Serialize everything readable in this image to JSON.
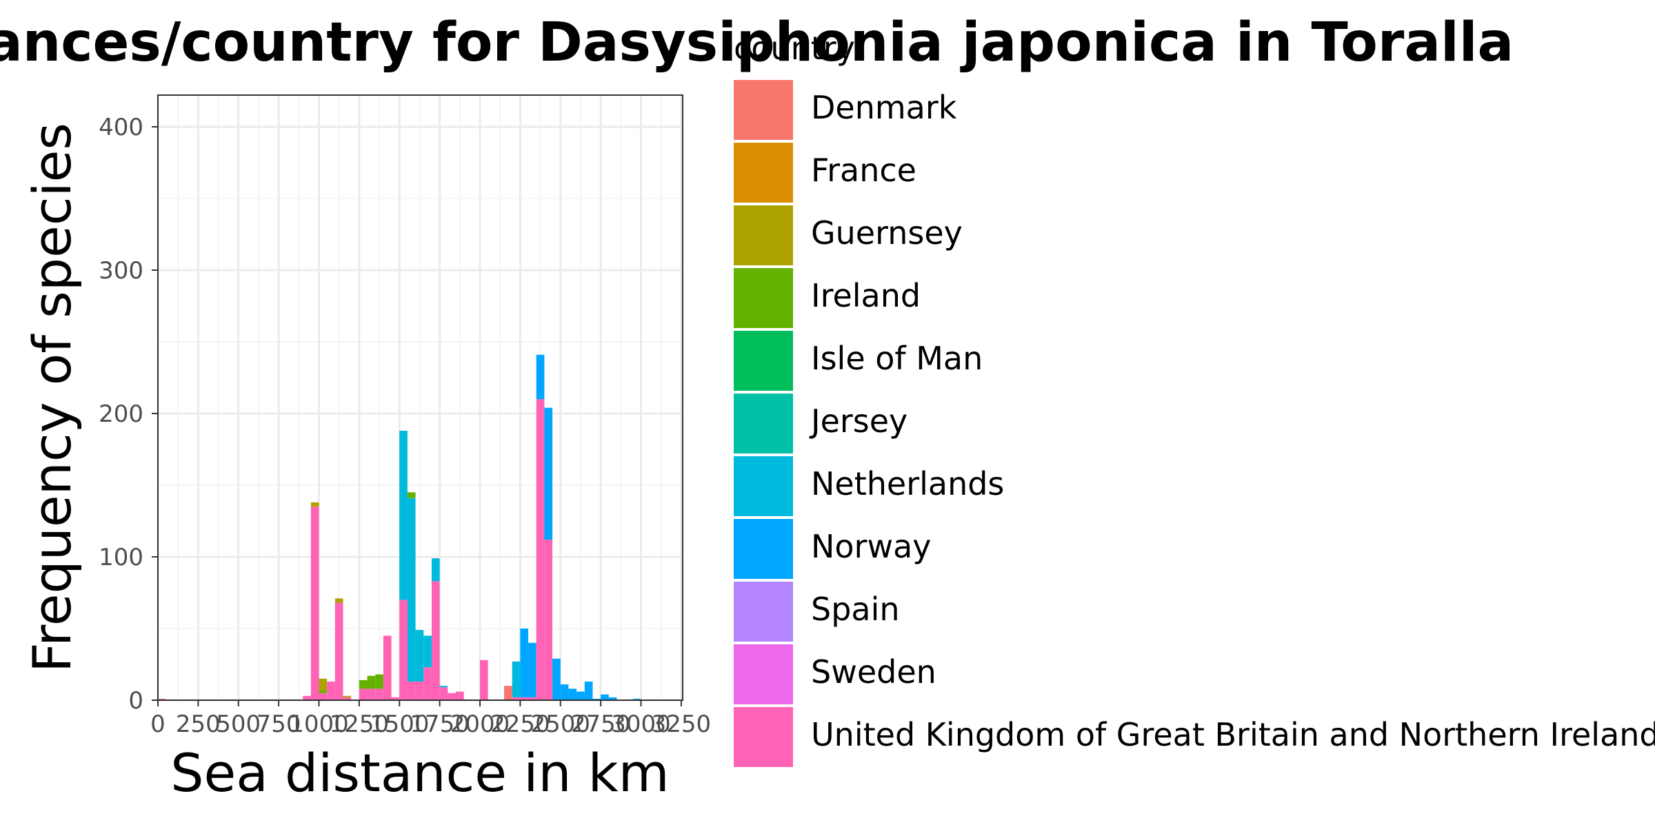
{
  "chart_data": {
    "type": "bar",
    "stacked": true,
    "title": "Distances/country for Dasysiphonia japonica in Toralla",
    "xlabel": "Sea distance in km",
    "ylabel": "Frequency of species",
    "xlim": [
      0,
      3250
    ],
    "ylim": [
      0,
      420
    ],
    "x_ticks": [
      "0",
      "250",
      "500",
      "750",
      "1000",
      "1250",
      "1500",
      "1750",
      "2000",
      "2250",
      "2500",
      "2750",
      "3000",
      "3250"
    ],
    "y_ticks": [
      "0",
      "100",
      "200",
      "300",
      "400"
    ],
    "x_tick_values": [
      0,
      250,
      500,
      750,
      1000,
      1250,
      1500,
      1750,
      2000,
      2250,
      2500,
      2750,
      3000,
      3250
    ],
    "y_tick_values": [
      0,
      100,
      200,
      300,
      400
    ],
    "grid": true,
    "legend": {
      "title": "country",
      "position": "right",
      "entries": [
        {
          "name": "Denmark",
          "color": "#F8766D"
        },
        {
          "name": "France",
          "color": "#DB8E00"
        },
        {
          "name": "Guernsey",
          "color": "#AEA200"
        },
        {
          "name": "Ireland",
          "color": "#64B200"
        },
        {
          "name": "Isle of Man",
          "color": "#00BD5C"
        },
        {
          "name": "Jersey",
          "color": "#00C1A7"
        },
        {
          "name": "Netherlands",
          "color": "#00BADE"
        },
        {
          "name": "Norway",
          "color": "#00A6FF"
        },
        {
          "name": "Spain",
          "color": "#B385FF"
        },
        {
          "name": "Sweden",
          "color": "#EF67EB"
        },
        {
          "name": "United Kingdom of Great Britain and Northern Ireland",
          "color": "#FF63B6"
        }
      ]
    },
    "bin_width": 50,
    "bins": [
      {
        "x0": 0,
        "segments": [
          {
            "country": "United Kingdom of Great Britain and Northern Ireland",
            "value": 1
          }
        ]
      },
      {
        "x0": 900,
        "segments": [
          {
            "country": "United Kingdom of Great Britain and Northern Ireland",
            "value": 3
          }
        ]
      },
      {
        "x0": 950,
        "segments": [
          {
            "country": "United Kingdom of Great Britain and Northern Ireland",
            "value": 135
          },
          {
            "country": "Guernsey",
            "value": 3
          }
        ]
      },
      {
        "x0": 1000,
        "segments": [
          {
            "country": "United Kingdom of Great Britain and Northern Ireland",
            "value": 5
          },
          {
            "country": "Ireland",
            "value": 2
          },
          {
            "country": "Guernsey",
            "value": 8
          }
        ]
      },
      {
        "x0": 1050,
        "segments": [
          {
            "country": "United Kingdom of Great Britain and Northern Ireland",
            "value": 13
          }
        ]
      },
      {
        "x0": 1100,
        "segments": [
          {
            "country": "United Kingdom of Great Britain and Northern Ireland",
            "value": 68
          },
          {
            "country": "Guernsey",
            "value": 3
          }
        ]
      },
      {
        "x0": 1150,
        "segments": [
          {
            "country": "United Kingdom of Great Britain and Northern Ireland",
            "value": 2
          },
          {
            "country": "Guernsey",
            "value": 1
          }
        ]
      },
      {
        "x0": 1250,
        "segments": [
          {
            "country": "United Kingdom of Great Britain and Northern Ireland",
            "value": 8
          },
          {
            "country": "Ireland",
            "value": 6
          }
        ]
      },
      {
        "x0": 1300,
        "segments": [
          {
            "country": "United Kingdom of Great Britain and Northern Ireland",
            "value": 8
          },
          {
            "country": "Ireland",
            "value": 9
          }
        ]
      },
      {
        "x0": 1350,
        "segments": [
          {
            "country": "United Kingdom of Great Britain and Northern Ireland",
            "value": 8
          },
          {
            "country": "Ireland",
            "value": 10
          }
        ]
      },
      {
        "x0": 1400,
        "segments": [
          {
            "country": "United Kingdom of Great Britain and Northern Ireland",
            "value": 45
          }
        ]
      },
      {
        "x0": 1450,
        "segments": [
          {
            "country": "United Kingdom of Great Britain and Northern Ireland",
            "value": 2
          }
        ]
      },
      {
        "x0": 1500,
        "segments": [
          {
            "country": "United Kingdom of Great Britain and Northern Ireland",
            "value": 70
          },
          {
            "country": "Netherlands",
            "value": 118
          }
        ]
      },
      {
        "x0": 1550,
        "segments": [
          {
            "country": "United Kingdom of Great Britain and Northern Ireland",
            "value": 13
          },
          {
            "country": "Netherlands",
            "value": 128
          },
          {
            "country": "Ireland",
            "value": 4
          }
        ]
      },
      {
        "x0": 1600,
        "segments": [
          {
            "country": "United Kingdom of Great Britain and Northern Ireland",
            "value": 13
          },
          {
            "country": "Netherlands",
            "value": 36
          }
        ]
      },
      {
        "x0": 1650,
        "segments": [
          {
            "country": "United Kingdom of Great Britain and Northern Ireland",
            "value": 23
          },
          {
            "country": "Netherlands",
            "value": 22
          }
        ]
      },
      {
        "x0": 1700,
        "segments": [
          {
            "country": "United Kingdom of Great Britain and Northern Ireland",
            "value": 83
          },
          {
            "country": "Netherlands",
            "value": 16
          }
        ]
      },
      {
        "x0": 1750,
        "segments": [
          {
            "country": "United Kingdom of Great Britain and Northern Ireland",
            "value": 9
          },
          {
            "country": "Netherlands",
            "value": 1
          }
        ]
      },
      {
        "x0": 1800,
        "segments": [
          {
            "country": "United Kingdom of Great Britain and Northern Ireland",
            "value": 5
          }
        ]
      },
      {
        "x0": 1850,
        "segments": [
          {
            "country": "United Kingdom of Great Britain and Northern Ireland",
            "value": 6
          }
        ]
      },
      {
        "x0": 2000,
        "segments": [
          {
            "country": "United Kingdom of Great Britain and Northern Ireland",
            "value": 28
          }
        ]
      },
      {
        "x0": 2150,
        "segments": [
          {
            "country": "Denmark",
            "value": 10
          }
        ]
      },
      {
        "x0": 2200,
        "segments": [
          {
            "country": "United Kingdom of Great Britain and Northern Ireland",
            "value": 2
          },
          {
            "country": "Netherlands",
            "value": 25
          }
        ]
      },
      {
        "x0": 2250,
        "segments": [
          {
            "country": "United Kingdom of Great Britain and Northern Ireland",
            "value": 2
          },
          {
            "country": "Norway",
            "value": 48
          }
        ]
      },
      {
        "x0": 2300,
        "segments": [
          {
            "country": "United Kingdom of Great Britain and Northern Ireland",
            "value": 2
          },
          {
            "country": "Norway",
            "value": 38
          }
        ]
      },
      {
        "x0": 2350,
        "segments": [
          {
            "country": "United Kingdom of Great Britain and Northern Ireland",
            "value": 210
          },
          {
            "country": "Norway",
            "value": 31
          }
        ]
      },
      {
        "x0": 2400,
        "segments": [
          {
            "country": "United Kingdom of Great Britain and Northern Ireland",
            "value": 112
          },
          {
            "country": "Norway",
            "value": 92
          }
        ]
      },
      {
        "x0": 2450,
        "segments": [
          {
            "country": "Norway",
            "value": 29
          }
        ]
      },
      {
        "x0": 2500,
        "segments": [
          {
            "country": "Norway",
            "value": 11
          }
        ]
      },
      {
        "x0": 2550,
        "segments": [
          {
            "country": "Norway",
            "value": 8
          }
        ]
      },
      {
        "x0": 2600,
        "segments": [
          {
            "country": "Norway",
            "value": 6
          }
        ]
      },
      {
        "x0": 2650,
        "segments": [
          {
            "country": "Norway",
            "value": 13
          }
        ]
      },
      {
        "x0": 2700,
        "segments": [
          {
            "country": "Norway",
            "value": 1
          }
        ]
      },
      {
        "x0": 2750,
        "segments": [
          {
            "country": "Norway",
            "value": 4
          }
        ]
      },
      {
        "x0": 2800,
        "segments": [
          {
            "country": "Norway",
            "value": 2
          }
        ]
      },
      {
        "x0": 2950,
        "segments": [
          {
            "country": "Norway",
            "value": 1
          }
        ]
      }
    ]
  }
}
